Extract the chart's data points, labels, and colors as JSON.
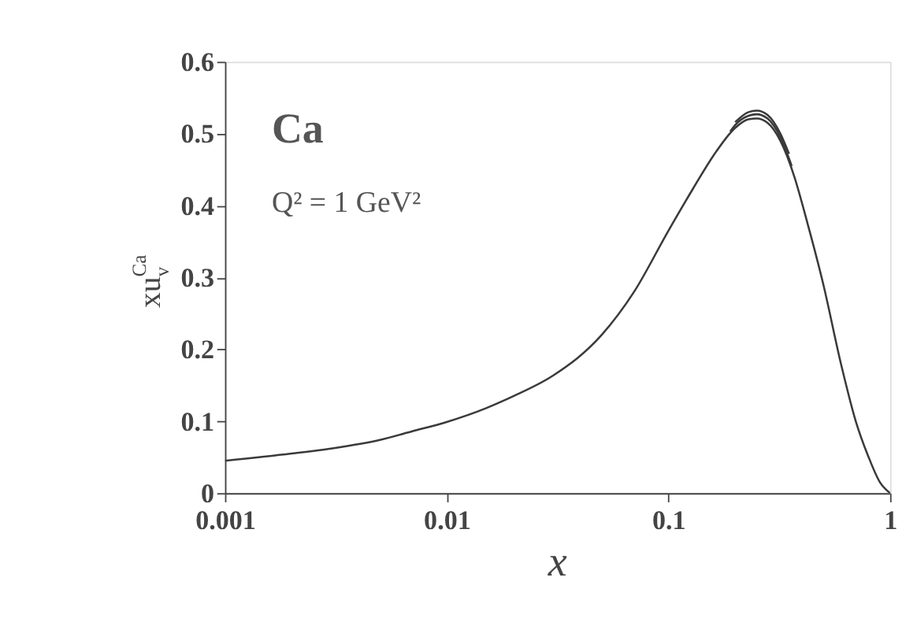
{
  "chart_data": {
    "type": "line",
    "xlabel": "x",
    "ylabel": "xu$_{v}$$^{Ca}$",
    "annotations": [
      "Ca",
      "Q² = 1 GeV²"
    ],
    "x": [
      0.001,
      0.002,
      0.003,
      0.005,
      0.007,
      0.01,
      0.015,
      0.02,
      0.03,
      0.05,
      0.07,
      0.1,
      0.13,
      0.16,
      0.2,
      0.23,
      0.25,
      0.28,
      0.32,
      0.37,
      0.42,
      0.5,
      0.6,
      0.7,
      0.8,
      0.9,
      1
    ],
    "series": [
      {
        "color": "#3a3a3a",
        "values": [
          0.045,
          0.055,
          0.062,
          0.074,
          0.086,
          0.099,
          0.118,
          0.135,
          0.163,
          0.22,
          0.28,
          0.365,
          0.425,
          0.47,
          0.508,
          0.52,
          0.521,
          0.515,
          0.49,
          0.44,
          0.38,
          0.29,
          0.18,
          0.1,
          0.05,
          0.015,
          0
        ]
      },
      {
        "color": "#3a3a3a",
        "x": [
          0.19,
          0.2,
          0.23,
          0.25,
          0.28,
          0.32,
          0.36
        ],
        "values": [
          0.503,
          0.512,
          0.525,
          0.527,
          0.521,
          0.495,
          0.455
        ]
      },
      {
        "color": "#3a3a3a",
        "x": [
          0.2,
          0.23,
          0.25,
          0.28,
          0.32,
          0.35
        ],
        "values": [
          0.516,
          0.53,
          0.532,
          0.526,
          0.5,
          0.472
        ]
      }
    ],
    "log": "x",
    "xlim": [
      0.001,
      1
    ],
    "xticks": [
      0.001,
      0.01,
      0.1,
      1
    ],
    "ylim": [
      0,
      0.6
    ],
    "yticks": [
      0,
      0.1,
      0.2,
      0.3,
      0.4,
      0.5,
      0.6
    ],
    "grid": false,
    "legend": false,
    "marker": "none",
    "line_style": "solid"
  }
}
